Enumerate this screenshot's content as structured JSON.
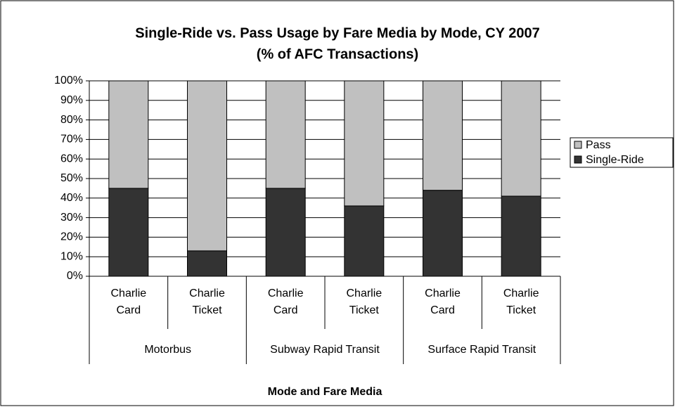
{
  "chart_data": {
    "type": "stacked_bar",
    "title": "Single-Ride vs. Pass Usage by Fare Media by Mode, CY 2007",
    "subtitle": "(% of AFC Transactions)",
    "x_label": "Mode and Fare Media",
    "categories": [
      "Charlie Card",
      "Charlie Ticket",
      "Charlie Card",
      "Charlie Ticket",
      "Charlie Card",
      "Charlie Ticket"
    ],
    "groups": [
      "Motorbus",
      "Subway Rapid Transit",
      "Surface Rapid Transit"
    ],
    "series": [
      {
        "name": "Single-Ride",
        "color": "#333333",
        "values": [
          45,
          13,
          45,
          36,
          44,
          41
        ]
      },
      {
        "name": "Pass",
        "color": "#c0c0c0",
        "values": [
          55,
          87,
          55,
          64,
          56,
          59
        ]
      }
    ],
    "ylim": [
      0,
      100
    ],
    "yticks": [
      {
        "value": 0,
        "label": "0%"
      },
      {
        "value": 10,
        "label": "10%"
      },
      {
        "value": 20,
        "label": "20%"
      },
      {
        "value": 30,
        "label": "30%"
      },
      {
        "value": 40,
        "label": "40%"
      },
      {
        "value": 50,
        "label": "50%"
      },
      {
        "value": 60,
        "label": "60%"
      },
      {
        "value": 70,
        "label": "70%"
      },
      {
        "value": 80,
        "label": "80%"
      },
      {
        "value": 90,
        "label": "90%"
      },
      {
        "value": 100,
        "label": "100%"
      }
    ],
    "grid": true,
    "legend": "right"
  }
}
